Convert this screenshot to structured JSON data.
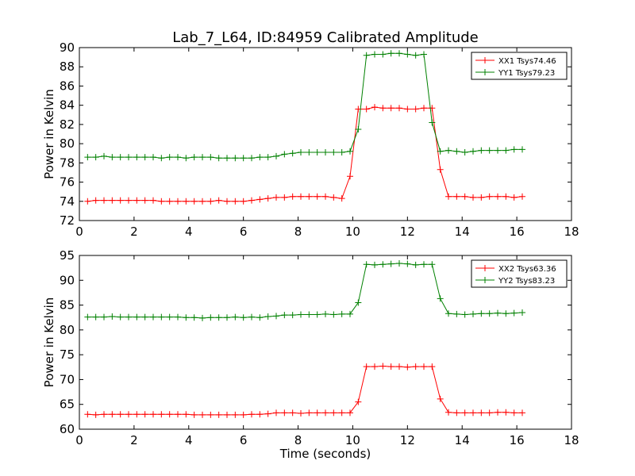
{
  "figure": {
    "title": "Lab_7_L64, ID:84959 Calibrated Amplitude"
  },
  "chart_data": [
    {
      "type": "line",
      "title": "Lab_7_L64, ID:84959 Calibrated Amplitude",
      "xlabel": "",
      "ylabel": "Power in Kelvin",
      "xlim": [
        0,
        18
      ],
      "ylim": [
        72,
        90
      ],
      "xticks": [
        "0",
        "2",
        "4",
        "6",
        "8",
        "10",
        "12",
        "14",
        "16",
        "18"
      ],
      "yticks": [
        "72",
        "74",
        "76",
        "78",
        "80",
        "82",
        "84",
        "86",
        "88",
        "90"
      ],
      "xtick_values": [
        0,
        2,
        4,
        6,
        8,
        10,
        12,
        14,
        16,
        18
      ],
      "ytick_values": [
        72,
        74,
        76,
        78,
        80,
        82,
        84,
        86,
        88,
        90
      ],
      "legend_position": "top-right",
      "marker": "plus",
      "x": [
        0.3,
        0.6,
        0.9,
        1.2,
        1.5,
        1.8,
        2.1,
        2.4,
        2.7,
        3.0,
        3.3,
        3.6,
        3.9,
        4.2,
        4.5,
        4.8,
        5.1,
        5.4,
        5.7,
        6.0,
        6.3,
        6.6,
        6.9,
        7.2,
        7.5,
        7.8,
        8.1,
        8.4,
        8.7,
        9.0,
        9.3,
        9.6,
        9.9,
        10.2,
        10.5,
        10.8,
        11.1,
        11.4,
        11.7,
        12.0,
        12.3,
        12.6,
        12.9,
        13.2,
        13.5,
        13.8,
        14.1,
        14.4,
        14.7,
        15.0,
        15.3,
        15.6,
        15.9,
        16.2
      ],
      "series": [
        {
          "name": "XX1 Tsys74.46",
          "color": "#ff0000",
          "values": [
            74.0,
            74.1,
            74.1,
            74.1,
            74.1,
            74.1,
            74.1,
            74.1,
            74.1,
            74.0,
            74.0,
            74.0,
            74.0,
            74.0,
            74.0,
            74.0,
            74.1,
            74.0,
            74.0,
            74.0,
            74.1,
            74.2,
            74.3,
            74.4,
            74.4,
            74.5,
            74.5,
            74.5,
            74.5,
            74.5,
            74.4,
            74.3,
            76.6,
            83.6,
            83.6,
            83.8,
            83.7,
            83.7,
            83.7,
            83.6,
            83.6,
            83.7,
            83.7,
            77.3,
            74.5,
            74.5,
            74.5,
            74.4,
            74.4,
            74.5,
            74.5,
            74.5,
            74.4,
            74.5
          ]
        },
        {
          "name": "YY1 Tsys79.23",
          "color": "#008000",
          "values": [
            78.6,
            78.6,
            78.7,
            78.6,
            78.6,
            78.6,
            78.6,
            78.6,
            78.6,
            78.5,
            78.6,
            78.6,
            78.5,
            78.6,
            78.6,
            78.6,
            78.5,
            78.5,
            78.5,
            78.5,
            78.5,
            78.6,
            78.6,
            78.7,
            78.9,
            79.0,
            79.1,
            79.1,
            79.1,
            79.1,
            79.1,
            79.1,
            79.2,
            81.5,
            89.2,
            89.3,
            89.3,
            89.4,
            89.4,
            89.3,
            89.2,
            89.3,
            82.2,
            79.2,
            79.3,
            79.2,
            79.1,
            79.2,
            79.3,
            79.3,
            79.3,
            79.3,
            79.4,
            79.4
          ]
        }
      ]
    },
    {
      "type": "line",
      "title": "",
      "xlabel": "Time (seconds)",
      "ylabel": "Power in Kelvin",
      "xlim": [
        0,
        18
      ],
      "ylim": [
        60,
        95
      ],
      "xticks": [
        "0",
        "2",
        "4",
        "6",
        "8",
        "10",
        "12",
        "14",
        "16",
        "18"
      ],
      "yticks": [
        "60",
        "65",
        "70",
        "75",
        "80",
        "85",
        "90",
        "95"
      ],
      "xtick_values": [
        0,
        2,
        4,
        6,
        8,
        10,
        12,
        14,
        16,
        18
      ],
      "ytick_values": [
        60,
        65,
        70,
        75,
        80,
        85,
        90,
        95
      ],
      "legend_position": "top-right",
      "marker": "plus",
      "x": [
        0.3,
        0.6,
        0.9,
        1.2,
        1.5,
        1.8,
        2.1,
        2.4,
        2.7,
        3.0,
        3.3,
        3.6,
        3.9,
        4.2,
        4.5,
        4.8,
        5.1,
        5.4,
        5.7,
        6.0,
        6.3,
        6.6,
        6.9,
        7.2,
        7.5,
        7.8,
        8.1,
        8.4,
        8.7,
        9.0,
        9.3,
        9.6,
        9.9,
        10.2,
        10.5,
        10.8,
        11.1,
        11.4,
        11.7,
        12.0,
        12.3,
        12.6,
        12.9,
        13.2,
        13.5,
        13.8,
        14.1,
        14.4,
        14.7,
        15.0,
        15.3,
        15.6,
        15.9,
        16.2
      ],
      "series": [
        {
          "name": "XX2 Tsys63.36",
          "color": "#ff0000",
          "values": [
            63.0,
            62.9,
            63.0,
            63.0,
            63.0,
            63.0,
            63.0,
            63.0,
            63.0,
            63.0,
            63.0,
            63.0,
            63.0,
            62.9,
            62.9,
            62.9,
            62.9,
            62.9,
            62.9,
            62.9,
            63.0,
            63.0,
            63.1,
            63.3,
            63.3,
            63.3,
            63.2,
            63.3,
            63.3,
            63.3,
            63.3,
            63.3,
            63.3,
            65.5,
            72.6,
            72.6,
            72.7,
            72.6,
            72.6,
            72.5,
            72.6,
            72.6,
            72.6,
            66.1,
            63.4,
            63.3,
            63.3,
            63.3,
            63.3,
            63.3,
            63.4,
            63.4,
            63.3,
            63.3
          ]
        },
        {
          "name": "YY2 Tsys83.23",
          "color": "#008000",
          "values": [
            82.6,
            82.6,
            82.6,
            82.7,
            82.6,
            82.6,
            82.6,
            82.6,
            82.6,
            82.6,
            82.6,
            82.6,
            82.5,
            82.5,
            82.4,
            82.5,
            82.5,
            82.5,
            82.6,
            82.5,
            82.6,
            82.5,
            82.7,
            82.8,
            83.0,
            83.0,
            83.1,
            83.1,
            83.1,
            83.2,
            83.1,
            83.2,
            83.2,
            85.5,
            93.2,
            93.1,
            93.2,
            93.3,
            93.4,
            93.3,
            93.1,
            93.2,
            93.2,
            86.3,
            83.3,
            83.2,
            83.1,
            83.2,
            83.3,
            83.3,
            83.4,
            83.3,
            83.4,
            83.5
          ]
        }
      ]
    }
  ]
}
